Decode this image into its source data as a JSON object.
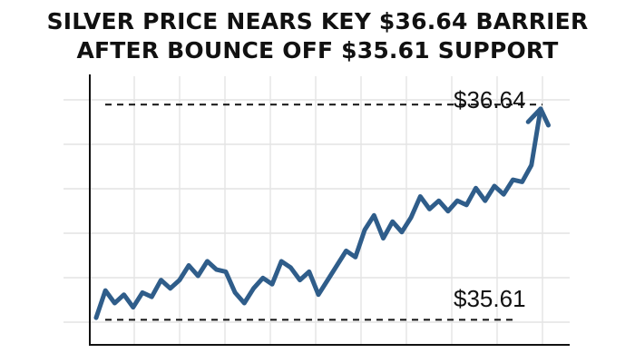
{
  "title_lines": [
    "SILVER PRICE NEARS KEY $36.64 BARRIER",
    "AFTER BOUNCE OFF $35.61 SUPPORT"
  ],
  "colors": {
    "line": "#2f5d8a",
    "grid": "#e4e4e4",
    "axis": "#111111",
    "reference": "#111111"
  },
  "chart_data": {
    "type": "line",
    "title": "SILVER PRICE NEARS KEY $36.64 BARRIER AFTER BOUNCE OFF $35.61 SUPPORT",
    "xlabel": "",
    "ylabel": "",
    "grid": true,
    "xlim": [
      0,
      48
    ],
    "ylim": [
      35.49,
      36.88
    ],
    "reference_lines": [
      {
        "value": 36.64,
        "label": "$36.64",
        "style": "dashed"
      },
      {
        "value": 35.61,
        "label": "$35.61",
        "style": "dashed"
      }
    ],
    "series": [
      {
        "x": [
          0,
          1,
          2,
          3,
          4,
          5,
          6,
          7,
          8,
          9,
          10,
          11,
          12,
          13,
          14,
          15,
          16,
          17,
          18,
          19,
          20,
          21,
          22,
          23,
          24,
          25,
          26,
          27,
          28,
          29,
          30,
          31,
          32,
          33,
          34,
          35,
          36,
          37,
          38,
          39,
          40,
          41,
          42,
          43,
          44,
          45,
          46,
          47,
          48
        ],
        "values": [
          35.62,
          35.75,
          35.69,
          35.73,
          35.67,
          35.74,
          35.72,
          35.8,
          35.76,
          35.8,
          35.87,
          35.82,
          35.89,
          35.85,
          35.84,
          35.74,
          35.69,
          35.76,
          35.81,
          35.78,
          35.89,
          35.86,
          35.8,
          35.84,
          35.73,
          35.8,
          35.87,
          35.94,
          35.91,
          36.04,
          36.11,
          36.0,
          36.08,
          36.03,
          36.1,
          36.2,
          36.14,
          36.18,
          36.13,
          36.18,
          36.16,
          36.24,
          36.18,
          36.25,
          36.21,
          36.28,
          36.27,
          36.35,
          36.62
        ],
        "end_arrow": true
      }
    ]
  }
}
